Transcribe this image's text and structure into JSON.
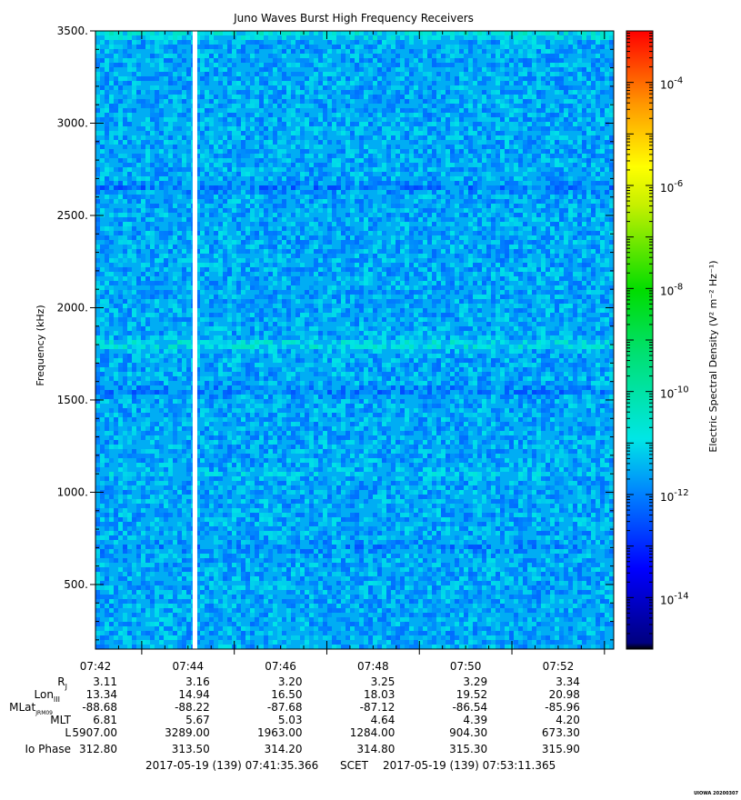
{
  "chart_data": {
    "type": "heatmap",
    "title": "Juno Waves Burst High Frequency Receivers",
    "ylabel": "Frequency (kHz)",
    "ylim": [
      150,
      3500
    ],
    "yticks": [
      500,
      1000,
      1500,
      2000,
      2500,
      3000,
      3500
    ],
    "ytick_labels": [
      "500.",
      "1000.",
      "1500.",
      "2000.",
      "2500.",
      "3000.",
      "3500."
    ],
    "x_range_minutes": [
      42.0,
      53.2
    ],
    "xticks_minutes": [
      42,
      44,
      46,
      48,
      50,
      52
    ],
    "xtick_labels": [
      "07:42",
      "07:44",
      "07:46",
      "07:48",
      "07:50",
      "07:52"
    ],
    "data_gap_minutes": [
      44.1,
      44.2
    ],
    "background_level": 3e-12,
    "spectral_bands": [
      {
        "frequency_khz": 3480,
        "level": 2e-11
      },
      {
        "frequency_khz": 1800,
        "level": 2e-11
      },
      {
        "frequency_khz": 1100,
        "level": 6e-12
      },
      {
        "frequency_khz": 2650,
        "level": 1e-12
      },
      {
        "frequency_khz": 1550,
        "level": 1e-12
      },
      {
        "frequency_khz": 700,
        "level": 1.5e-12
      }
    ],
    "colorbar": {
      "label": "Electric Spectral Density (V² m⁻² Hz⁻¹)",
      "scale": "log",
      "range": [
        1e-15,
        0.001
      ],
      "tick_labels": [
        {
          "base": "10",
          "exp": "-4",
          "value": 0.0001
        },
        {
          "base": "10",
          "exp": "-6",
          "value": 1e-06
        },
        {
          "base": "10",
          "exp": "-8",
          "value": 1e-08
        },
        {
          "base": "10",
          "exp": "-10",
          "value": 1e-10
        },
        {
          "base": "10",
          "exp": "-12",
          "value": 1e-12
        },
        {
          "base": "10",
          "exp": "-14",
          "value": 1e-14
        }
      ]
    },
    "ephemeris": {
      "rows": [
        {
          "label": "R",
          "sub": "J",
          "values": [
            "3.11",
            "3.16",
            "3.20",
            "3.25",
            "3.29",
            "3.34"
          ]
        },
        {
          "label": "Lon",
          "sub": "III",
          "values": [
            "13.34",
            "14.94",
            "16.50",
            "18.03",
            "19.52",
            "20.98"
          ]
        },
        {
          "label": "MLat",
          "sub": "JRM09",
          "values": [
            "-88.68",
            "-88.22",
            "-87.68",
            "-87.12",
            "-86.54",
            "-85.96"
          ]
        },
        {
          "label": "MLT",
          "sub": "",
          "values": [
            "6.81",
            "5.67",
            "5.03",
            "4.64",
            "4.39",
            "4.20"
          ]
        },
        {
          "label": "L",
          "sub": "",
          "values": [
            "5907.00",
            "3289.00",
            "1963.00",
            "1284.00",
            "904.30",
            "673.30"
          ]
        },
        {
          "label": "Io Phase",
          "sub": "",
          "values": [
            "312.80",
            "313.50",
            "314.20",
            "314.80",
            "315.30",
            "315.90"
          ]
        }
      ]
    },
    "time_range": {
      "start": "2017-05-19 (139) 07:41:35.366",
      "frame": "SCET",
      "end": "2017-05-19 (139) 07:53:11.365"
    },
    "footer": "UIOWA 20200307"
  }
}
